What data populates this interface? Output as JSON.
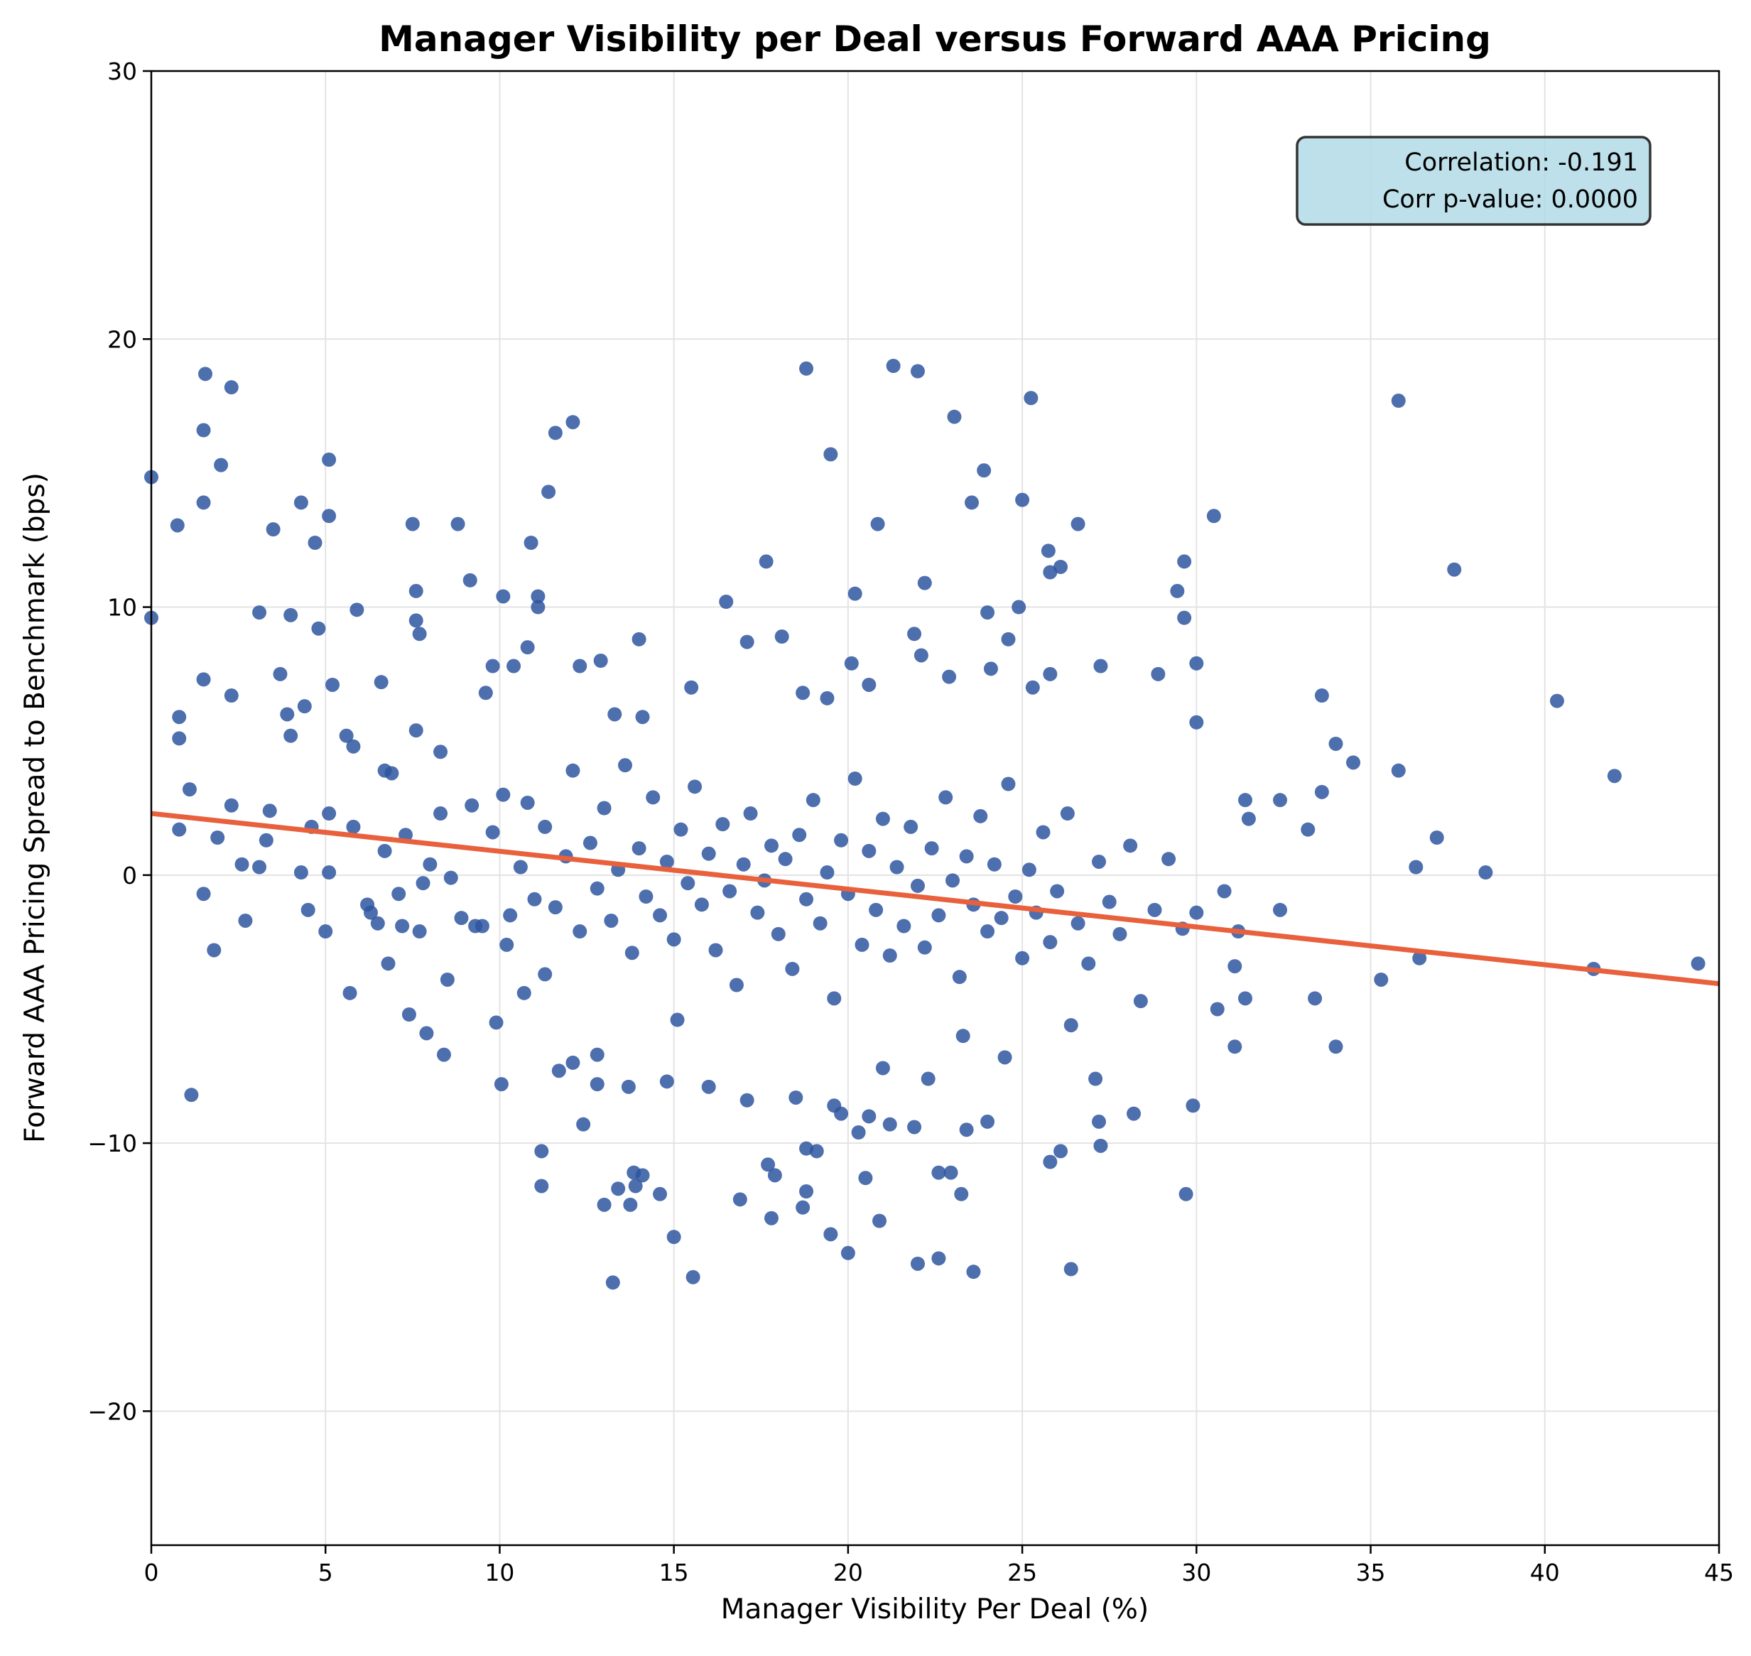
{
  "chart_data": {
    "type": "scatter",
    "title": "Manager Visibility per Deal versus Forward AAA Pricing",
    "xlabel": "Manager Visibility Per Deal (%)",
    "ylabel": "Forward AAA Pricing Spread to Benchmark (bps)",
    "xlim": [
      0,
      45
    ],
    "ylim": [
      -25,
      30
    ],
    "xticks": [
      "0",
      "5",
      "10",
      "15",
      "20",
      "25",
      "30",
      "35",
      "40",
      "45"
    ],
    "yticks": [
      "−20",
      "−10",
      "0",
      "10",
      "20",
      "30"
    ],
    "ytick_values": [
      -20,
      -10,
      0,
      10,
      20,
      30
    ],
    "xtick_values": [
      0,
      5,
      10,
      15,
      20,
      25,
      30,
      35,
      40,
      45
    ],
    "grid": true,
    "colors": {
      "points": "#2f56a0",
      "trend": "#e8603c",
      "annotation_bg": "#add8e6"
    },
    "trendline": {
      "x": [
        0,
        45
      ],
      "y": [
        2.3,
        -4.05
      ]
    },
    "annotation": {
      "line1": "Correlation: -0.191",
      "line2": "Corr p-value: 0.0000",
      "position": "top-right"
    },
    "points": [
      [
        0,
        14.85
      ],
      [
        0,
        9.6
      ],
      [
        1.55,
        18.7
      ],
      [
        2.3,
        18.2
      ],
      [
        1.5,
        16.6
      ],
      [
        2.0,
        15.3
      ],
      [
        1.5,
        13.9
      ],
      [
        0.75,
        13.05
      ],
      [
        3.5,
        12.9
      ],
      [
        4.3,
        13.9
      ],
      [
        5.1,
        15.5
      ],
      [
        4.7,
        12.4
      ],
      [
        5.1,
        13.4
      ],
      [
        3.1,
        9.8
      ],
      [
        4.0,
        9.7
      ],
      [
        4.8,
        9.2
      ],
      [
        5.9,
        9.9
      ],
      [
        7.5,
        13.1
      ],
      [
        8.8,
        13.1
      ],
      [
        7.6,
        10.6
      ],
      [
        7.6,
        9.5
      ],
      [
        7.7,
        9.0
      ],
      [
        9.15,
        11.0
      ],
      [
        10.1,
        10.4
      ],
      [
        10.9,
        12.4
      ],
      [
        11.4,
        14.3
      ],
      [
        11.6,
        16.5
      ],
      [
        12.1,
        16.9
      ],
      [
        11.1,
        10.4
      ],
      [
        11.1,
        10.0
      ],
      [
        1.15,
        -8.2
      ],
      [
        1.8,
        -2.8
      ],
      [
        1.5,
        -0.7
      ],
      [
        2.7,
        -1.7
      ],
      [
        5.7,
        -4.4
      ],
      [
        5.0,
        -2.1
      ],
      [
        7.4,
        -5.2
      ],
      [
        7.9,
        -5.9
      ],
      [
        8.4,
        -6.7
      ],
      [
        8.5,
        -3.9
      ],
      [
        6.8,
        -3.3
      ],
      [
        9.9,
        -5.5
      ],
      [
        10.05,
        -7.8
      ],
      [
        11.2,
        -11.6
      ],
      [
        11.3,
        -3.7
      ],
      [
        10.7,
        -4.4
      ],
      [
        11.2,
        -10.3
      ],
      [
        12.1,
        -7.0
      ],
      [
        12.4,
        -9.3
      ],
      [
        12.8,
        -7.8
      ],
      [
        13.0,
        -12.3
      ],
      [
        13.25,
        -15.2
      ],
      [
        13.4,
        -11.7
      ],
      [
        13.85,
        -11.1
      ],
      [
        14.1,
        -11.2
      ],
      [
        13.75,
        -12.3
      ],
      [
        13.9,
        -11.6
      ],
      [
        14.6,
        -11.9
      ],
      [
        15.0,
        -13.5
      ],
      [
        15.55,
        -15.0
      ],
      [
        18.8,
        18.9
      ],
      [
        21.3,
        19.0
      ],
      [
        22.0,
        18.8
      ],
      [
        23.05,
        17.1
      ],
      [
        25.25,
        17.8
      ],
      [
        19.5,
        15.7
      ],
      [
        23.9,
        15.1
      ],
      [
        23.55,
        13.9
      ],
      [
        25.0,
        14.0
      ],
      [
        20.85,
        13.1
      ],
      [
        26.6,
        13.1
      ],
      [
        25.75,
        12.1
      ],
      [
        26.1,
        11.5
      ],
      [
        25.8,
        11.3
      ],
      [
        22.2,
        10.9
      ],
      [
        17.65,
        11.7
      ],
      [
        20.2,
        10.5
      ],
      [
        24.9,
        10.0
      ],
      [
        24.0,
        9.8
      ],
      [
        29.65,
        11.7
      ],
      [
        29.45,
        10.6
      ],
      [
        29.65,
        9.6
      ],
      [
        30.5,
        13.4
      ],
      [
        30.0,
        7.9
      ],
      [
        28.9,
        7.5
      ],
      [
        27.25,
        7.8
      ],
      [
        30.0,
        5.7
      ],
      [
        35.8,
        17.7
      ],
      [
        37.4,
        11.4
      ],
      [
        40.35,
        6.5
      ],
      [
        42.0,
        3.7
      ],
      [
        34.5,
        4.2
      ],
      [
        33.6,
        3.1
      ],
      [
        34.0,
        4.9
      ],
      [
        33.6,
        6.7
      ],
      [
        35.8,
        3.9
      ],
      [
        36.9,
        1.4
      ],
      [
        38.3,
        0.1
      ],
      [
        36.3,
        0.3
      ],
      [
        32.4,
        2.8
      ],
      [
        31.4,
        2.8
      ],
      [
        31.5,
        2.1
      ],
      [
        33.2,
        1.7
      ],
      [
        32.4,
        -1.3
      ],
      [
        35.3,
        -3.9
      ],
      [
        36.4,
        -3.1
      ],
      [
        33.4,
        -4.6
      ],
      [
        34.0,
        -6.4
      ],
      [
        31.1,
        -6.4
      ],
      [
        31.4,
        -4.6
      ],
      [
        30.6,
        -5.0
      ],
      [
        41.4,
        -3.5
      ],
      [
        44.4,
        -3.3
      ],
      [
        31.1,
        -3.4
      ],
      [
        30.8,
        -0.6
      ],
      [
        31.2,
        -2.1
      ],
      [
        16.9,
        -12.1
      ],
      [
        17.8,
        -12.8
      ],
      [
        19.5,
        -13.4
      ],
      [
        20.0,
        -14.1
      ],
      [
        20.9,
        -12.9
      ],
      [
        20.5,
        -11.3
      ],
      [
        22.0,
        -14.5
      ],
      [
        22.6,
        -14.3
      ],
      [
        23.6,
        -14.8
      ],
      [
        26.4,
        -14.7
      ],
      [
        22.95,
        -11.1
      ],
      [
        23.25,
        -11.9
      ],
      [
        22.6,
        -11.1
      ],
      [
        29.7,
        -11.9
      ],
      [
        25.8,
        -10.7
      ],
      [
        26.1,
        -10.3
      ],
      [
        27.25,
        -10.1
      ],
      [
        27.2,
        -9.2
      ],
      [
        29.9,
        -8.6
      ],
      [
        28.2,
        -8.9
      ],
      [
        18.8,
        -10.2
      ],
      [
        19.1,
        -10.3
      ],
      [
        18.8,
        -11.8
      ],
      [
        18.7,
        -12.4
      ],
      [
        17.7,
        -10.8
      ],
      [
        17.9,
        -11.2
      ],
      [
        21.2,
        -9.3
      ],
      [
        21.9,
        -9.4
      ],
      [
        20.6,
        -9.0
      ],
      [
        23.4,
        -9.5
      ],
      [
        24.0,
        -9.2
      ],
      [
        19.6,
        -8.6
      ],
      [
        20.3,
        -9.6
      ],
      [
        6.2,
        -1.1
      ],
      [
        6.5,
        -1.8
      ],
      [
        6.7,
        0.9
      ],
      [
        7.1,
        -0.7
      ],
      [
        7.3,
        1.5
      ],
      [
        7.8,
        -0.3
      ],
      [
        8.0,
        0.4
      ],
      [
        8.3,
        2.3
      ],
      [
        8.6,
        -0.1
      ],
      [
        8.9,
        -1.6
      ],
      [
        9.2,
        2.6
      ],
      [
        9.5,
        -1.9
      ],
      [
        9.8,
        1.6
      ],
      [
        10.1,
        3.0
      ],
      [
        10.3,
        -1.5
      ],
      [
        10.6,
        0.3
      ],
      [
        10.8,
        2.7
      ],
      [
        11.0,
        -0.9
      ],
      [
        11.3,
        1.8
      ],
      [
        11.6,
        -1.2
      ],
      [
        11.9,
        0.7
      ],
      [
        12.1,
        3.9
      ],
      [
        12.3,
        -2.1
      ],
      [
        12.6,
        1.2
      ],
      [
        12.8,
        -0.5
      ],
      [
        13.0,
        2.5
      ],
      [
        13.2,
        -1.7
      ],
      [
        13.4,
        0.2
      ],
      [
        13.6,
        4.1
      ],
      [
        13.8,
        -2.9
      ],
      [
        14.0,
        1.0
      ],
      [
        14.2,
        -0.8
      ],
      [
        14.4,
        2.9
      ],
      [
        14.6,
        -1.5
      ],
      [
        14.8,
        0.5
      ],
      [
        15.0,
        -2.4
      ],
      [
        15.2,
        1.7
      ],
      [
        15.4,
        -0.3
      ],
      [
        15.6,
        3.3
      ],
      [
        15.8,
        -1.1
      ],
      [
        16.0,
        0.8
      ],
      [
        16.2,
        -2.8
      ],
      [
        16.4,
        1.9
      ],
      [
        16.6,
        -0.6
      ],
      [
        16.8,
        -4.1
      ],
      [
        17.0,
        0.4
      ],
      [
        17.2,
        2.3
      ],
      [
        17.4,
        -1.4
      ],
      [
        17.6,
        -0.2
      ],
      [
        17.8,
        1.1
      ],
      [
        18.0,
        -2.2
      ],
      [
        18.2,
        0.6
      ],
      [
        18.4,
        -3.5
      ],
      [
        18.6,
        1.5
      ],
      [
        18.8,
        -0.9
      ],
      [
        19.0,
        2.8
      ],
      [
        19.2,
        -1.8
      ],
      [
        19.4,
        0.1
      ],
      [
        19.6,
        -4.6
      ],
      [
        19.8,
        1.3
      ],
      [
        20.0,
        -0.7
      ],
      [
        20.2,
        3.6
      ],
      [
        20.4,
        -2.6
      ],
      [
        20.6,
        0.9
      ],
      [
        20.8,
        -1.3
      ],
      [
        21.0,
        2.1
      ],
      [
        21.2,
        -3.0
      ],
      [
        21.4,
        0.3
      ],
      [
        21.6,
        -1.9
      ],
      [
        21.8,
        1.8
      ],
      [
        22.0,
        -0.4
      ],
      [
        22.2,
        -2.7
      ],
      [
        22.4,
        1.0
      ],
      [
        22.6,
        -1.5
      ],
      [
        22.8,
        2.9
      ],
      [
        23.0,
        -0.2
      ],
      [
        23.2,
        -3.8
      ],
      [
        23.4,
        0.7
      ],
      [
        23.6,
        -1.1
      ],
      [
        23.8,
        2.2
      ],
      [
        24.0,
        -2.1
      ],
      [
        24.2,
        0.4
      ],
      [
        24.4,
        -1.6
      ],
      [
        24.6,
        3.4
      ],
      [
        24.8,
        -0.8
      ],
      [
        25.0,
        -3.1
      ],
      [
        25.2,
        0.2
      ],
      [
        25.4,
        -1.4
      ],
      [
        25.6,
        1.6
      ],
      [
        25.8,
        -2.5
      ],
      [
        26.0,
        -0.6
      ],
      [
        26.3,
        2.3
      ],
      [
        26.6,
        -1.8
      ],
      [
        26.9,
        -3.3
      ],
      [
        27.2,
        0.5
      ],
      [
        27.5,
        -1.0
      ],
      [
        27.8,
        -2.2
      ],
      [
        28.1,
        1.1
      ],
      [
        28.4,
        -4.7
      ],
      [
        28.8,
        -1.3
      ],
      [
        29.2,
        0.6
      ],
      [
        29.6,
        -2.0
      ],
      [
        30.0,
        -1.4
      ],
      [
        14.1,
        5.9
      ],
      [
        15.5,
        7.0
      ],
      [
        16.5,
        10.2
      ],
      [
        17.1,
        8.7
      ],
      [
        18.1,
        8.9
      ],
      [
        18.7,
        6.8
      ],
      [
        19.4,
        6.6
      ],
      [
        20.1,
        7.9
      ],
      [
        20.6,
        7.1
      ],
      [
        21.9,
        9.0
      ],
      [
        22.1,
        8.2
      ],
      [
        22.9,
        7.4
      ],
      [
        24.1,
        7.7
      ],
      [
        24.6,
        8.8
      ],
      [
        25.3,
        7.0
      ],
      [
        25.8,
        7.5
      ],
      [
        16.0,
        -7.9
      ],
      [
        17.1,
        -8.4
      ],
      [
        18.5,
        -8.3
      ],
      [
        19.8,
        -8.9
      ],
      [
        21.0,
        -7.2
      ],
      [
        22.3,
        -7.6
      ],
      [
        23.3,
        -6.0
      ],
      [
        24.5,
        -6.8
      ],
      [
        26.4,
        -5.6
      ],
      [
        27.1,
        -7.6
      ],
      [
        15.1,
        -5.4
      ],
      [
        14.8,
        -7.7
      ],
      [
        13.7,
        -7.9
      ],
      [
        12.8,
        -6.7
      ],
      [
        11.7,
        -7.3
      ],
      [
        13.3,
        6.0
      ],
      [
        12.9,
        8.0
      ],
      [
        12.3,
        7.8
      ],
      [
        14.0,
        8.8
      ],
      [
        10.8,
        8.5
      ],
      [
        10.4,
        7.8
      ],
      [
        9.8,
        7.8
      ],
      [
        9.6,
        6.8
      ],
      [
        8.3,
        4.6
      ],
      [
        7.6,
        5.4
      ],
      [
        6.6,
        7.2
      ],
      [
        5.6,
        5.2
      ],
      [
        4.4,
        6.3
      ],
      [
        3.9,
        6.0
      ],
      [
        3.7,
        7.5
      ],
      [
        2.3,
        6.7
      ],
      [
        1.5,
        7.3
      ],
      [
        0.8,
        5.9
      ],
      [
        0.8,
        5.1
      ],
      [
        1.1,
        3.2
      ],
      [
        0.8,
        1.7
      ],
      [
        1.9,
        1.4
      ],
      [
        2.6,
        0.4
      ],
      [
        3.1,
        0.3
      ],
      [
        3.3,
        1.3
      ],
      [
        4.3,
        0.1
      ],
      [
        4.5,
        -1.3
      ],
      [
        5.1,
        0.1
      ],
      [
        5.8,
        1.8
      ],
      [
        6.3,
        -1.4
      ],
      [
        7.2,
        -1.9
      ],
      [
        7.7,
        -2.1
      ],
      [
        9.3,
        -1.9
      ],
      [
        10.2,
        -2.6
      ],
      [
        2.3,
        2.6
      ],
      [
        3.4,
        2.4
      ],
      [
        4.6,
        1.8
      ],
      [
        5.1,
        2.3
      ],
      [
        5.2,
        7.1
      ],
      [
        5.8,
        4.8
      ],
      [
        6.7,
        3.9
      ],
      [
        6.9,
        3.8
      ],
      [
        4.0,
        5.2
      ]
    ]
  }
}
